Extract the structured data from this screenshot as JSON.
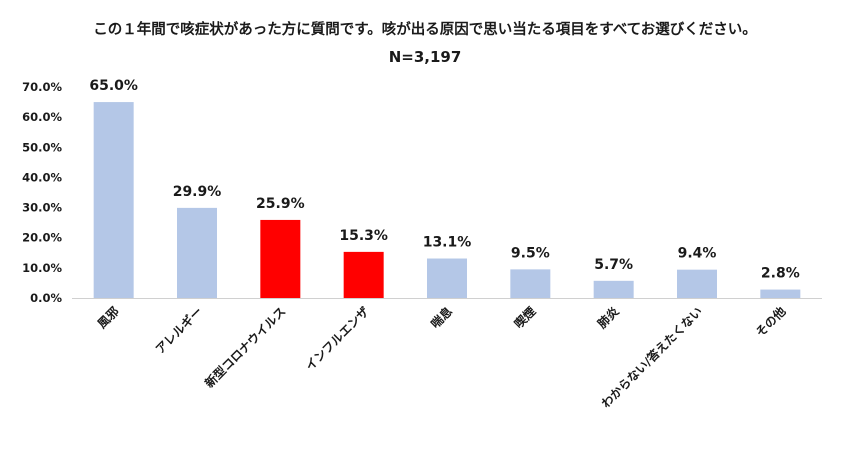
{
  "chart_data": {
    "type": "bar",
    "title": "この１年間で咳症状があった方に質問です。咳が出る原因で思い当たる項目をすべてお選びください。",
    "subtitle": "N=3,197",
    "categories": [
      "風邪",
      "アレルギー",
      "新型コロナウイルス",
      "インフルエンザ",
      "喘息",
      "喫煙",
      "肺炎",
      "わからない/答えたくない",
      "その他"
    ],
    "values": [
      65.0,
      29.9,
      25.9,
      15.3,
      13.1,
      9.5,
      5.7,
      9.4,
      2.8
    ],
    "value_labels": [
      "65.0%",
      "29.9%",
      "25.9%",
      "15.3%",
      "13.1%",
      "9.5%",
      "5.7%",
      "9.4%",
      "2.8%"
    ],
    "highlighted": [
      false,
      false,
      true,
      true,
      false,
      false,
      false,
      false,
      false
    ],
    "yticks": [
      "0.0%",
      "10.0%",
      "20.0%",
      "30.0%",
      "40.0%",
      "50.0%",
      "60.0%",
      "70.0%"
    ],
    "ylim": [
      0,
      70
    ],
    "grid": false,
    "colors": {
      "bar": "#b4c7e7",
      "highlight": "#ff0000"
    }
  }
}
